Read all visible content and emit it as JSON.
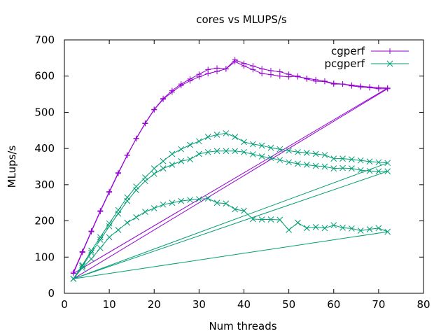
{
  "chart_data": {
    "type": "line",
    "title": "cores vs MLUPS/s",
    "xlabel": "Num threads",
    "ylabel": "MLups/s",
    "xlim": [
      0,
      80
    ],
    "ylim": [
      0,
      700
    ],
    "xticks": [
      0,
      10,
      20,
      30,
      40,
      50,
      60,
      70,
      80
    ],
    "yticks": [
      0,
      100,
      200,
      300,
      400,
      500,
      600,
      700
    ],
    "grid": false,
    "legend_position": "top-right",
    "series": [
      {
        "name": "cgperf",
        "color": "#9400d3",
        "marker": "plus",
        "segments": [
          {
            "x": [
              2,
              4,
              6,
              8,
              10,
              12,
              14,
              16,
              18,
              20,
              22,
              24,
              26,
              28,
              30,
              32,
              34,
              36,
              38,
              40,
              42,
              44,
              46,
              48,
              50,
              52,
              54,
              56,
              58,
              60,
              62,
              64,
              66,
              68,
              70,
              72
            ],
            "y": [
              58,
              115,
              172,
              228,
              281,
              333,
              382,
              428,
              470,
              508,
              538,
              560,
              578,
              592,
              605,
              618,
              622,
              620,
              645,
              635,
              628,
              620,
              615,
              612,
              605,
              598,
              594,
              590,
              586,
              580,
              578,
              575,
              572,
              570,
              568,
              567
            ]
          },
          {
            "x": [
              72,
              2
            ],
            "y": [
              567,
              55
            ]
          },
          {
            "x": [
              2,
              4,
              6,
              8,
              10,
              12,
              14,
              16,
              18,
              20,
              22,
              24,
              26,
              28,
              30,
              32,
              34,
              36,
              38,
              40,
              42,
              44,
              46,
              48,
              50,
              52,
              54,
              56,
              58,
              60,
              62,
              64,
              66,
              68,
              70,
              72
            ],
            "y": [
              55,
              113,
              170,
              226,
              279,
              331,
              381,
              427,
              469,
              507,
              536,
              556,
              574,
              587,
              598,
              607,
              613,
              620,
              640,
              628,
              618,
              607,
              604,
              600,
              598,
              600,
              592,
              586,
              585,
              578,
              578,
              573,
              570,
              568,
              565,
              565
            ]
          },
          {
            "x": [
              72,
              2
            ],
            "y": [
              565,
              40
            ]
          }
        ]
      },
      {
        "name": "pcgperf",
        "color": "#009e73",
        "marker": "x",
        "segments": [
          {
            "x": [
              2,
              4,
              6,
              8,
              10,
              12,
              14,
              16,
              18,
              20,
              22,
              24,
              26,
              28,
              30,
              32,
              34,
              36,
              38,
              40,
              42,
              44,
              46,
              48,
              50,
              52,
              54,
              56,
              58,
              60,
              62,
              64,
              66,
              68,
              70,
              72
            ],
            "y": [
              40,
              78,
              118,
              155,
              193,
              230,
              265,
              295,
              320,
              345,
              365,
              385,
              398,
              410,
              420,
              432,
              438,
              442,
              432,
              418,
              412,
              408,
              402,
              398,
              394,
              390,
              388,
              385,
              382,
              372,
              372,
              370,
              367,
              364,
              362,
              360
            ]
          },
          {
            "x": [
              72,
              2
            ],
            "y": [
              360,
              40
            ]
          },
          {
            "x": [
              2,
              4,
              6,
              8,
              10,
              12,
              14,
              16,
              18,
              20,
              22,
              24,
              26,
              28,
              30,
              32,
              34,
              36,
              38,
              40,
              42,
              44,
              46,
              48,
              50,
              52,
              54,
              56,
              58,
              60,
              62,
              64,
              66,
              68,
              70,
              72
            ],
            "y": [
              40,
              75,
              112,
              148,
              185,
              220,
              255,
              285,
              310,
              330,
              345,
              355,
              365,
              370,
              385,
              390,
              393,
              393,
              393,
              390,
              384,
              378,
              374,
              368,
              362,
              358,
              355,
              352,
              350,
              345,
              346,
              345,
              340,
              338,
              337,
              337
            ]
          },
          {
            "x": [
              72,
              2
            ],
            "y": [
              337,
              40
            ]
          },
          {
            "x": [
              2,
              4,
              6,
              8,
              10,
              12,
              14,
              16,
              18,
              20,
              22,
              24,
              26,
              28,
              30,
              32,
              34,
              36,
              38,
              40,
              42,
              44,
              46,
              48,
              50,
              52,
              54,
              56,
              58,
              60,
              62,
              64,
              66,
              68,
              70,
              72
            ],
            "y": [
              40,
              70,
              95,
              125,
              155,
              175,
              195,
              210,
              225,
              235,
              245,
              250,
              255,
              258,
              260,
              262,
              250,
              248,
              232,
              228,
              205,
              204,
              204,
              203,
              175,
              195,
              180,
              183,
              180,
              188,
              181,
              179,
              173,
              177,
              180,
              170
            ]
          },
          {
            "x": [
              72,
              2
            ],
            "y": [
              170,
              40
            ]
          }
        ]
      }
    ]
  }
}
